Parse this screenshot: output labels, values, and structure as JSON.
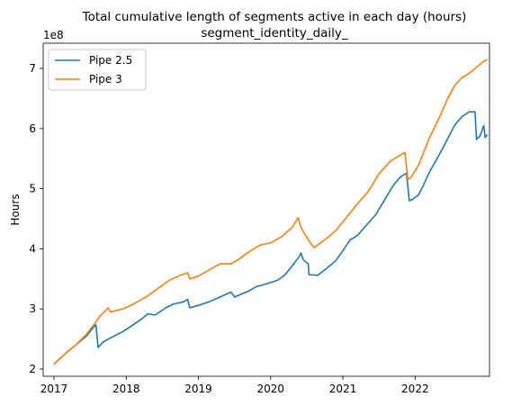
{
  "chart_data": {
    "type": "line",
    "title": "Total cumulative length of segments active in each day (hours)",
    "subtitle": "segment_identity_daily_",
    "xlabel": "",
    "ylabel": "Hours",
    "y_offset_label": "1e8",
    "xlim": [
      2016.85,
      2023.03
    ],
    "ylim": [
      1.88,
      7.42
    ],
    "y_multiplier": 100000000,
    "grid": false,
    "legend_placement": "top-left",
    "x_ticks": [
      {
        "value": 2017,
        "label": "2017"
      },
      {
        "value": 2018,
        "label": "2018"
      },
      {
        "value": 2019,
        "label": "2019"
      },
      {
        "value": 2020,
        "label": "2020"
      },
      {
        "value": 2021,
        "label": "2021"
      },
      {
        "value": 2022,
        "label": "2022"
      }
    ],
    "y_ticks": [
      {
        "value": 2,
        "label": "2"
      },
      {
        "value": 3,
        "label": "3"
      },
      {
        "value": 4,
        "label": "4"
      },
      {
        "value": 5,
        "label": "5"
      },
      {
        "value": 6,
        "label": "6"
      },
      {
        "value": 7,
        "label": "7"
      }
    ],
    "series": [
      {
        "name": "Pipe 2.5",
        "color": "#1f77b4",
        "points": [
          [
            2017.0,
            2.08
          ],
          [
            2017.05,
            2.14
          ],
          [
            2017.15,
            2.25
          ],
          [
            2017.3,
            2.4
          ],
          [
            2017.45,
            2.55
          ],
          [
            2017.55,
            2.7
          ],
          [
            2017.58,
            2.74
          ],
          [
            2017.61,
            2.36
          ],
          [
            2017.68,
            2.45
          ],
          [
            2017.8,
            2.53
          ],
          [
            2017.95,
            2.62
          ],
          [
            2018.1,
            2.74
          ],
          [
            2018.2,
            2.82
          ],
          [
            2018.3,
            2.92
          ],
          [
            2018.4,
            2.9
          ],
          [
            2018.55,
            3.02
          ],
          [
            2018.65,
            3.08
          ],
          [
            2018.8,
            3.12
          ],
          [
            2018.85,
            3.16
          ],
          [
            2018.88,
            3.02
          ],
          [
            2019.0,
            3.06
          ],
          [
            2019.15,
            3.12
          ],
          [
            2019.3,
            3.2
          ],
          [
            2019.45,
            3.28
          ],
          [
            2019.5,
            3.2
          ],
          [
            2019.6,
            3.25
          ],
          [
            2019.7,
            3.3
          ],
          [
            2019.8,
            3.37
          ],
          [
            2019.95,
            3.42
          ],
          [
            2020.1,
            3.48
          ],
          [
            2020.2,
            3.57
          ],
          [
            2020.3,
            3.72
          ],
          [
            2020.4,
            3.88
          ],
          [
            2020.42,
            3.93
          ],
          [
            2020.45,
            3.82
          ],
          [
            2020.52,
            3.75
          ],
          [
            2020.53,
            3.57
          ],
          [
            2020.65,
            3.56
          ],
          [
            2020.75,
            3.65
          ],
          [
            2020.9,
            3.8
          ],
          [
            2021.0,
            3.97
          ],
          [
            2021.1,
            4.15
          ],
          [
            2021.2,
            4.22
          ],
          [
            2021.3,
            4.36
          ],
          [
            2021.45,
            4.56
          ],
          [
            2021.6,
            4.86
          ],
          [
            2021.7,
            5.06
          ],
          [
            2021.8,
            5.2
          ],
          [
            2021.88,
            5.26
          ],
          [
            2021.92,
            4.8
          ],
          [
            2021.96,
            4.82
          ],
          [
            2022.05,
            4.9
          ],
          [
            2022.1,
            5.02
          ],
          [
            2022.2,
            5.28
          ],
          [
            2022.35,
            5.6
          ],
          [
            2022.45,
            5.83
          ],
          [
            2022.55,
            6.06
          ],
          [
            2022.65,
            6.2
          ],
          [
            2022.75,
            6.28
          ],
          [
            2022.83,
            6.28
          ],
          [
            2022.85,
            5.82
          ],
          [
            2022.9,
            5.88
          ],
          [
            2022.95,
            6.05
          ],
          [
            2022.97,
            5.85
          ],
          [
            2023.0,
            5.9
          ]
        ]
      },
      {
        "name": "Pipe 3",
        "color": "#ff7f0e",
        "points": [
          [
            2017.0,
            2.08
          ],
          [
            2017.05,
            2.14
          ],
          [
            2017.15,
            2.25
          ],
          [
            2017.3,
            2.4
          ],
          [
            2017.45,
            2.58
          ],
          [
            2017.55,
            2.74
          ],
          [
            2017.65,
            2.9
          ],
          [
            2017.75,
            3.02
          ],
          [
            2017.78,
            2.95
          ],
          [
            2017.95,
            3.0
          ],
          [
            2018.1,
            3.08
          ],
          [
            2018.2,
            3.15
          ],
          [
            2018.3,
            3.22
          ],
          [
            2018.45,
            3.35
          ],
          [
            2018.6,
            3.48
          ],
          [
            2018.75,
            3.56
          ],
          [
            2018.85,
            3.6
          ],
          [
            2018.88,
            3.5
          ],
          [
            2019.0,
            3.55
          ],
          [
            2019.15,
            3.65
          ],
          [
            2019.3,
            3.75
          ],
          [
            2019.45,
            3.75
          ],
          [
            2019.55,
            3.82
          ],
          [
            2019.7,
            3.95
          ],
          [
            2019.85,
            4.06
          ],
          [
            2020.0,
            4.1
          ],
          [
            2020.15,
            4.2
          ],
          [
            2020.3,
            4.36
          ],
          [
            2020.38,
            4.52
          ],
          [
            2020.42,
            4.35
          ],
          [
            2020.52,
            4.15
          ],
          [
            2020.6,
            4.02
          ],
          [
            2020.75,
            4.15
          ],
          [
            2020.9,
            4.3
          ],
          [
            2021.0,
            4.45
          ],
          [
            2021.1,
            4.6
          ],
          [
            2021.2,
            4.75
          ],
          [
            2021.35,
            4.95
          ],
          [
            2021.5,
            5.25
          ],
          [
            2021.65,
            5.45
          ],
          [
            2021.78,
            5.55
          ],
          [
            2021.86,
            5.6
          ],
          [
            2021.9,
            5.15
          ],
          [
            2021.95,
            5.2
          ],
          [
            2022.05,
            5.4
          ],
          [
            2022.2,
            5.85
          ],
          [
            2022.35,
            6.22
          ],
          [
            2022.45,
            6.5
          ],
          [
            2022.55,
            6.72
          ],
          [
            2022.65,
            6.85
          ],
          [
            2022.75,
            6.92
          ],
          [
            2022.85,
            7.02
          ],
          [
            2022.95,
            7.12
          ],
          [
            2023.0,
            7.15
          ]
        ]
      }
    ]
  }
}
